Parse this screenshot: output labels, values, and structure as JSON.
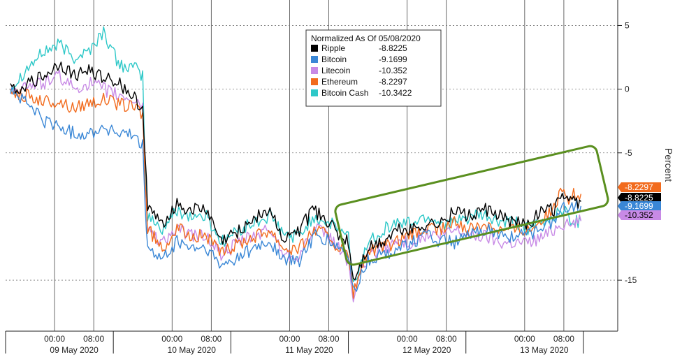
{
  "chart_data": {
    "type": "line",
    "ylabel": "Percent",
    "ylim": [
      -19,
      7
    ],
    "y_ticks": [
      {
        "value": 5,
        "label": "5"
      },
      {
        "value": 0,
        "label": "0"
      },
      {
        "value": -5,
        "label": "-5"
      },
      {
        "value": -15,
        "label": "-15"
      }
    ],
    "time_ticks": [
      {
        "hour": 24,
        "label": "00:00"
      },
      {
        "hour": 32,
        "label": "08:00"
      },
      {
        "hour": 48,
        "label": "00:00"
      },
      {
        "hour": 56,
        "label": "08:00"
      },
      {
        "hour": 72,
        "label": "00:00"
      },
      {
        "hour": 80,
        "label": "08:00"
      },
      {
        "hour": 96,
        "label": "00:00"
      },
      {
        "hour": 104,
        "label": "08:00"
      },
      {
        "hour": 120,
        "label": "00:00"
      },
      {
        "hour": 128,
        "label": "08:00"
      }
    ],
    "date_labels": [
      {
        "hour": 24,
        "label": "09 May 2020"
      },
      {
        "hour": 48,
        "label": "10 May 2020"
      },
      {
        "hour": 72,
        "label": "11 May 2020"
      },
      {
        "hour": 96,
        "label": "12 May 2020"
      },
      {
        "hour": 120,
        "label": "13 May 2020"
      }
    ],
    "legend_title": "Normalized As Of 05/08/2020",
    "x_hours": [
      15,
      18,
      22,
      25,
      28,
      31,
      34,
      37,
      41,
      42,
      42.5,
      43,
      46,
      49,
      52,
      55,
      58,
      62,
      65,
      68,
      71,
      74,
      77,
      80,
      82,
      84,
      85,
      88,
      91,
      94,
      97,
      100,
      103,
      106,
      109,
      112,
      115,
      118,
      121,
      124,
      126,
      127,
      128,
      129,
      130,
      131.5
    ],
    "series": [
      {
        "name": "Ripple",
        "color": "#000000",
        "last_value": "-8.8225",
        "values": [
          0,
          0.3,
          1,
          2,
          1,
          1.5,
          1,
          0.5,
          -1,
          -1.5,
          -5,
          -9.5,
          -10.5,
          -9,
          -9.5,
          -9.5,
          -12,
          -11,
          -10,
          -9.5,
          -12,
          -11,
          -9.5,
          -10.5,
          -11.5,
          -12,
          -15,
          -12.5,
          -12,
          -11,
          -11,
          -10.5,
          -10.5,
          -9.5,
          -10,
          -9.5,
          -10,
          -10.5,
          -10.5,
          -9.5,
          -9.5,
          -8.8,
          -8.2,
          -9,
          -8.8,
          -8.8225
        ]
      },
      {
        "name": "Bitcoin",
        "color": "#3a87d6",
        "last_value": "-9.1699",
        "values": [
          0,
          -1,
          -2.5,
          -3,
          -3.5,
          -3.5,
          -3,
          -3.5,
          -3.8,
          -4.5,
          -9,
          -12.5,
          -13.5,
          -12,
          -12.5,
          -12.5,
          -14,
          -13,
          -12.5,
          -12,
          -13.5,
          -13.5,
          -11.5,
          -12,
          -12.5,
          -13,
          -16,
          -13.5,
          -13,
          -12.5,
          -12,
          -11.5,
          -12,
          -12,
          -11.5,
          -11,
          -11.5,
          -11.5,
          -11.5,
          -10.5,
          -10.5,
          -9.5,
          -9,
          -9.5,
          -9.2,
          -9.1699
        ]
      },
      {
        "name": "Litecoin",
        "color": "#c88ae6",
        "last_value": "-10.352",
        "values": [
          0,
          0.2,
          0.5,
          1,
          0,
          0.5,
          0,
          -0.5,
          -1,
          -1.5,
          -7,
          -11,
          -12,
          -11,
          -11.5,
          -11.5,
          -13,
          -12,
          -11.5,
          -11,
          -13,
          -13,
          -11,
          -11.5,
          -12.5,
          -13.5,
          -16.5,
          -13,
          -12.5,
          -12,
          -12,
          -11.5,
          -11.5,
          -11,
          -11.5,
          -11.5,
          -12,
          -12,
          -12,
          -11.5,
          -11,
          -10.5,
          -10.5,
          -10.8,
          -10.4,
          -10.352
        ]
      },
      {
        "name": "Ethereum",
        "color": "#f26b1d",
        "last_value": "-8.2297",
        "values": [
          0,
          -0.5,
          -1,
          -1,
          -1.5,
          -1,
          -0.8,
          -1.2,
          -1.5,
          -2,
          -7,
          -11,
          -12.5,
          -11,
          -11.5,
          -11.5,
          -13,
          -12,
          -11.5,
          -11,
          -12.5,
          -12.5,
          -11,
          -11.5,
          -12.5,
          -13,
          -16,
          -12.8,
          -12.5,
          -12,
          -11.5,
          -11,
          -11,
          -10.5,
          -11,
          -10.5,
          -11,
          -11,
          -11,
          -10,
          -9.5,
          -8.5,
          -7.5,
          -8.5,
          -8.3,
          -8.2297
        ]
      },
      {
        "name": "Bitcoin Cash",
        "color": "#2ec8c8",
        "last_value": "-10.3422",
        "values": [
          0,
          1.5,
          3,
          3.5,
          2.5,
          3,
          4.5,
          2,
          1.5,
          1,
          -6,
          -10,
          -11,
          -9.5,
          -10,
          -10,
          -12,
          -11,
          -10.5,
          -10,
          -11.5,
          -11.5,
          -10,
          -10.5,
          -11,
          -11.5,
          -15.5,
          -12,
          -11,
          -10.5,
          -10.5,
          -10,
          -10.5,
          -10.5,
          -10,
          -10,
          -10.5,
          -10.5,
          -11,
          -10.5,
          -10,
          -9.5,
          -9.5,
          -10,
          -10.4,
          -10.3422
        ]
      }
    ],
    "right_tags": [
      {
        "series": "Ethereum",
        "label": "-8.2297"
      },
      {
        "series": "Ripple",
        "label": "-8.8225"
      },
      {
        "series": "Bitcoin",
        "label": "-9.1699"
      },
      {
        "series": "Litecoin",
        "label": "-10.352"
      }
    ],
    "annotation": {
      "type": "rounded-rectangle",
      "color": "#5a8f1f"
    }
  }
}
